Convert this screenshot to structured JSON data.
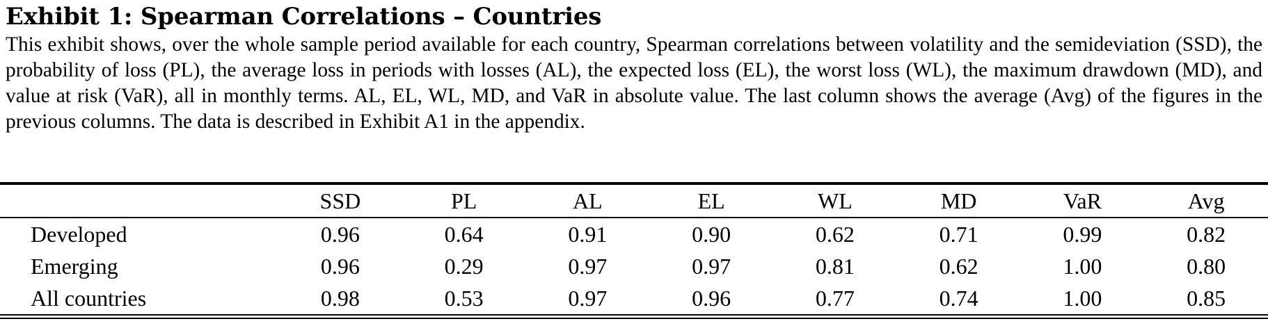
{
  "exhibit": {
    "title": "Exhibit 1: Spearman Correlations – Countries",
    "caption": "This exhibit shows, over the whole sample period available for each country, Spearman correlations between volatility and the semideviation (SSD), the probability of loss (PL), the average loss in periods with losses (AL), the expected loss (EL), the worst loss (WL), the maximum drawdown (MD), and value at risk (VaR), all in monthly terms. AL, EL, WL, MD, and VaR in absolute value. The last column shows the average (Avg) of the figures in the previous columns. The data is described in Exhibit A1 in the appendix."
  },
  "table": {
    "columns": [
      "",
      "SSD",
      "PL",
      "AL",
      "EL",
      "WL",
      "MD",
      "VaR",
      "Avg"
    ],
    "rows": [
      {
        "label": "Developed",
        "values": [
          "0.96",
          "0.64",
          "0.91",
          "0.90",
          "0.62",
          "0.71",
          "0.99",
          "0.82"
        ]
      },
      {
        "label": "Emerging",
        "values": [
          "0.96",
          "0.29",
          "0.97",
          "0.97",
          "0.81",
          "0.62",
          "1.00",
          "0.80"
        ]
      },
      {
        "label": "All countries",
        "values": [
          "0.98",
          "0.53",
          "0.97",
          "0.96",
          "0.77",
          "0.74",
          "1.00",
          "0.85"
        ]
      }
    ]
  }
}
